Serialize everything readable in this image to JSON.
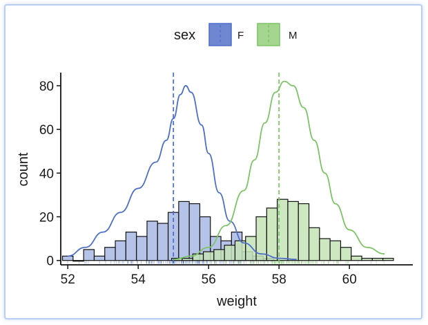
{
  "chart_data": {
    "type": "histogram",
    "xlabel": "weight",
    "ylabel": "count",
    "xlim": [
      51.8,
      61.8
    ],
    "ylim": [
      -2,
      86
    ],
    "x_ticks": [
      52,
      54,
      56,
      58,
      60
    ],
    "y_ticks": [
      0,
      20,
      40,
      60,
      80
    ],
    "bin_width": 0.3,
    "legend": {
      "title": "sex",
      "position": "top",
      "entries": [
        "F",
        "M"
      ]
    },
    "series": [
      {
        "name": "F",
        "color": "#4d6fc9",
        "fill": "#a9b8e4",
        "mean": 55.0,
        "bins": [
          {
            "x": 52.0,
            "count": 2
          },
          {
            "x": 52.3,
            "count": 0
          },
          {
            "x": 52.6,
            "count": 5
          },
          {
            "x": 52.9,
            "count": 2
          },
          {
            "x": 53.2,
            "count": 6
          },
          {
            "x": 53.5,
            "count": 9
          },
          {
            "x": 53.8,
            "count": 13
          },
          {
            "x": 54.1,
            "count": 11
          },
          {
            "x": 54.4,
            "count": 18
          },
          {
            "x": 54.7,
            "count": 17
          },
          {
            "x": 55.0,
            "count": 22
          },
          {
            "x": 55.3,
            "count": 27
          },
          {
            "x": 55.6,
            "count": 26
          },
          {
            "x": 55.9,
            "count": 20
          },
          {
            "x": 56.2,
            "count": 11
          },
          {
            "x": 56.5,
            "count": 9
          },
          {
            "x": 56.8,
            "count": 13
          },
          {
            "x": 57.1,
            "count": 4
          },
          {
            "x": 57.4,
            "count": 2
          },
          {
            "x": 57.7,
            "count": 1
          }
        ],
        "density": [
          [
            52.0,
            2
          ],
          [
            52.5,
            6
          ],
          [
            53.0,
            13
          ],
          [
            53.5,
            22
          ],
          [
            54.0,
            33
          ],
          [
            54.5,
            45
          ],
          [
            54.8,
            55
          ],
          [
            55.0,
            65
          ],
          [
            55.2,
            76
          ],
          [
            55.35,
            80
          ],
          [
            55.5,
            77
          ],
          [
            55.8,
            62
          ],
          [
            56.0,
            49
          ],
          [
            56.3,
            31
          ],
          [
            56.6,
            18
          ],
          [
            57.0,
            8
          ],
          [
            57.5,
            3
          ],
          [
            58.0,
            1
          ],
          [
            58.5,
            0.5
          ]
        ]
      },
      {
        "name": "M",
        "color": "#7cc465",
        "fill": "#c4e3b6",
        "mean": 58.0,
        "bins": [
          {
            "x": 55.1,
            "count": 1
          },
          {
            "x": 55.4,
            "count": 1
          },
          {
            "x": 55.7,
            "count": 3
          },
          {
            "x": 56.0,
            "count": 4
          },
          {
            "x": 56.3,
            "count": 5
          },
          {
            "x": 56.6,
            "count": 7
          },
          {
            "x": 56.9,
            "count": 9
          },
          {
            "x": 57.2,
            "count": 11
          },
          {
            "x": 57.5,
            "count": 20
          },
          {
            "x": 57.8,
            "count": 24
          },
          {
            "x": 58.1,
            "count": 28
          },
          {
            "x": 58.4,
            "count": 27
          },
          {
            "x": 58.7,
            "count": 26
          },
          {
            "x": 59.0,
            "count": 15
          },
          {
            "x": 59.3,
            "count": 10
          },
          {
            "x": 59.6,
            "count": 9
          },
          {
            "x": 59.9,
            "count": 6
          },
          {
            "x": 60.2,
            "count": 2
          },
          {
            "x": 60.5,
            "count": 1
          },
          {
            "x": 60.8,
            "count": 1
          },
          {
            "x": 61.1,
            "count": 1
          }
        ],
        "density": [
          [
            55.0,
            0.5
          ],
          [
            55.5,
            2
          ],
          [
            56.0,
            6
          ],
          [
            56.5,
            16
          ],
          [
            57.0,
            32
          ],
          [
            57.3,
            46
          ],
          [
            57.6,
            63
          ],
          [
            57.9,
            77
          ],
          [
            58.15,
            82
          ],
          [
            58.4,
            80
          ],
          [
            58.7,
            70
          ],
          [
            59.0,
            55
          ],
          [
            59.3,
            40
          ],
          [
            59.6,
            26
          ],
          [
            60.0,
            14
          ],
          [
            60.5,
            6
          ],
          [
            61.0,
            3
          ]
        ]
      }
    ]
  }
}
